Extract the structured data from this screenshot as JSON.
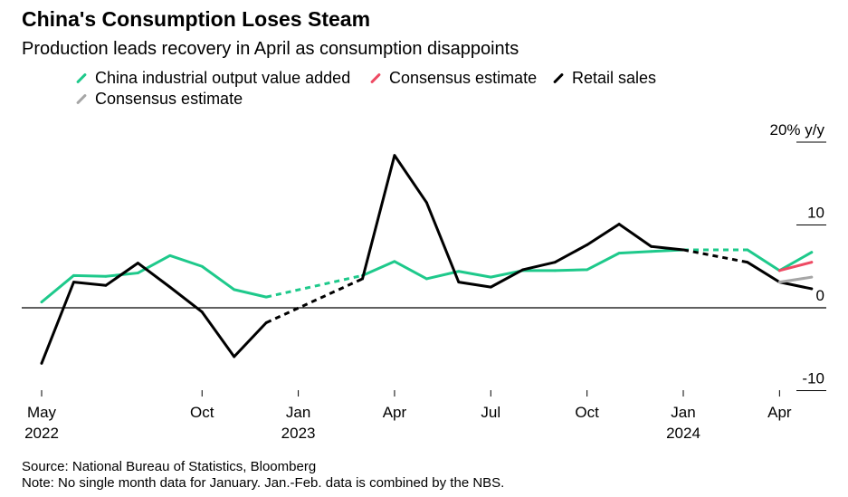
{
  "title": "China's Consumption Loses Steam",
  "subtitle": "Production leads recovery in April as consumption disappoints",
  "legend": [
    {
      "label": "China industrial output value added",
      "color": "#1ec98b"
    },
    {
      "label": "Consensus estimate",
      "color": "#ee4a63"
    },
    {
      "label": "Retail sales",
      "color": "#000000"
    },
    {
      "label": "Consensus estimate",
      "color": "#a6a6a6"
    }
  ],
  "footer": {
    "source": "Source: National Bureau of Statistics, Bloomberg",
    "note": "Note: No single month data for January. Jan.-Feb. data is combined by the NBS."
  },
  "chart_data": {
    "type": "line",
    "x_tick_labels": [
      {
        "month": "2022-05",
        "line1": "May",
        "line2": "2022"
      },
      {
        "month": "2022-10",
        "line1": "Oct",
        "line2": ""
      },
      {
        "month": "2023-01",
        "line1": "Jan",
        "line2": "2023"
      },
      {
        "month": "2023-04",
        "line1": "Apr",
        "line2": ""
      },
      {
        "month": "2023-07",
        "line1": "Jul",
        "line2": ""
      },
      {
        "month": "2023-10",
        "line1": "Oct",
        "line2": ""
      },
      {
        "month": "2024-01",
        "line1": "Jan",
        "line2": "2024"
      },
      {
        "month": "2024-04",
        "line1": "Apr",
        "line2": ""
      }
    ],
    "y_ticks": [
      {
        "value": 20,
        "label": "20% y/y"
      },
      {
        "value": 10,
        "label": "10"
      },
      {
        "value": 0,
        "label": "0"
      },
      {
        "value": -10,
        "label": "-10"
      }
    ],
    "ylim": [
      -10,
      20
    ],
    "series": [
      {
        "name": "China industrial output value added",
        "color": "#1ec98b",
        "dashed_segments": [
          [
            "2022-12",
            "2023-03"
          ],
          [
            "2024-01",
            "2024-03"
          ]
        ],
        "points": [
          [
            "2022-05",
            0.7
          ],
          [
            "2022-06",
            3.9
          ],
          [
            "2022-07",
            3.8
          ],
          [
            "2022-08",
            4.2
          ],
          [
            "2022-09",
            6.3
          ],
          [
            "2022-10",
            5.0
          ],
          [
            "2022-11",
            2.2
          ],
          [
            "2022-12",
            1.3
          ],
          [
            "2023-03",
            3.9
          ],
          [
            "2023-04",
            5.6
          ],
          [
            "2023-05",
            3.5
          ],
          [
            "2023-06",
            4.4
          ],
          [
            "2023-07",
            3.7
          ],
          [
            "2023-08",
            4.5
          ],
          [
            "2023-09",
            4.5
          ],
          [
            "2023-10",
            4.6
          ],
          [
            "2023-11",
            6.6
          ],
          [
            "2023-12",
            6.8
          ],
          [
            "2024-01",
            7.0
          ],
          [
            "2024-03",
            7.0
          ],
          [
            "2024-04",
            4.5
          ],
          [
            "2024-05",
            6.7
          ]
        ]
      },
      {
        "name": "Consensus estimate",
        "color": "#ee4a63",
        "points": [
          [
            "2024-04",
            4.5
          ],
          [
            "2024-05",
            5.5
          ]
        ]
      },
      {
        "name": "Retail sales",
        "color": "#000000",
        "dashed_segments": [
          [
            "2022-12",
            "2023-03"
          ],
          [
            "2024-01",
            "2024-03"
          ]
        ],
        "points": [
          [
            "2022-05",
            -6.7
          ],
          [
            "2022-06",
            3.1
          ],
          [
            "2022-07",
            2.7
          ],
          [
            "2022-08",
            5.4
          ],
          [
            "2022-09",
            2.5
          ],
          [
            "2022-10",
            -0.5
          ],
          [
            "2022-11",
            -5.9
          ],
          [
            "2022-12",
            -1.8
          ],
          [
            "2023-03",
            3.5
          ],
          [
            "2023-04",
            18.4
          ],
          [
            "2023-05",
            12.7
          ],
          [
            "2023-06",
            3.1
          ],
          [
            "2023-07",
            2.5
          ],
          [
            "2023-08",
            4.6
          ],
          [
            "2023-09",
            5.5
          ],
          [
            "2023-10",
            7.6
          ],
          [
            "2023-11",
            10.1
          ],
          [
            "2023-12",
            7.4
          ],
          [
            "2024-01",
            7.0
          ],
          [
            "2024-03",
            5.5
          ],
          [
            "2024-04",
            3.1
          ],
          [
            "2024-05",
            2.3
          ]
        ]
      },
      {
        "name": "Consensus estimate",
        "color": "#a6a6a6",
        "points": [
          [
            "2024-04",
            3.1
          ],
          [
            "2024-05",
            3.7
          ]
        ]
      }
    ]
  }
}
